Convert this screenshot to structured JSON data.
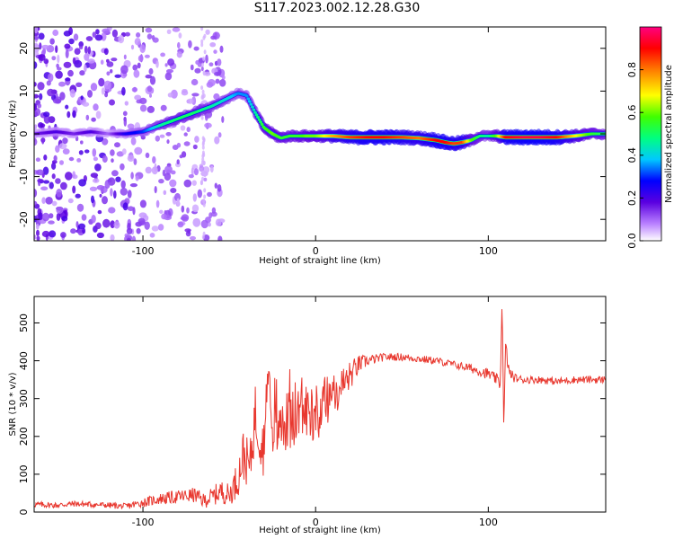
{
  "title": "S117.2023.002.12.28.G30",
  "chart_data": [
    {
      "type": "heatmap",
      "xlabel": "Height of straight line (km)",
      "ylabel": "Frequency (Hz)",
      "xlim": [
        -163,
        168
      ],
      "ylim": [
        -25,
        25
      ],
      "x_ticks": [
        "-100",
        "0",
        "100"
      ],
      "x_tick_values": [
        -100,
        0,
        100
      ],
      "y_ticks": [
        "-20",
        "-10",
        "0",
        "10",
        "20"
      ],
      "y_tick_values": [
        -20,
        -10,
        0,
        10,
        20
      ],
      "colorbar": {
        "label": "Normalized spectral amplitude",
        "range": [
          0,
          1
        ],
        "ticks": [
          "0.0",
          "0.2",
          "0.4",
          "0.6",
          "0.8"
        ],
        "tick_values": [
          0.0,
          0.2,
          0.4,
          0.6,
          0.8
        ]
      },
      "ridge": {
        "x": [
          -163,
          -150,
          -140,
          -130,
          -120,
          -110,
          -100,
          -90,
          -80,
          -70,
          -60,
          -50,
          -45,
          -40,
          -35,
          -30,
          -25,
          -20,
          -15,
          -10,
          -5,
          0,
          10,
          20,
          30,
          40,
          50,
          60,
          70,
          75,
          80,
          85,
          90,
          95,
          100,
          105,
          110,
          120,
          130,
          140,
          150,
          160,
          168
        ],
        "y": [
          0,
          0.5,
          0,
          0.5,
          0,
          0,
          0.5,
          2,
          3.5,
          5,
          6.5,
          8.5,
          9.5,
          9,
          5,
          1.5,
          0,
          -1,
          -0.5,
          -0.5,
          -0.5,
          -0.5,
          -0.5,
          -0.8,
          -0.8,
          -0.8,
          -0.8,
          -1,
          -1.5,
          -2,
          -2.3,
          -2,
          -1.5,
          -0.5,
          -0.5,
          -0.5,
          -0.8,
          -0.8,
          -0.8,
          -0.8,
          -0.5,
          0,
          0
        ],
        "amplitude": [
          0.15,
          0.2,
          0.15,
          0.2,
          0.1,
          0.25,
          0.3,
          0.45,
          0.5,
          0.5,
          0.45,
          0.4,
          0.35,
          0.35,
          0.45,
          0.55,
          0.6,
          0.55,
          0.55,
          0.55,
          0.6,
          0.6,
          0.75,
          0.85,
          0.9,
          0.9,
          0.85,
          0.8,
          0.9,
          0.9,
          0.85,
          0.85,
          0.6,
          0.5,
          0.45,
          0.6,
          0.9,
          0.95,
          0.95,
          0.9,
          0.7,
          0.55,
          0.5
        ]
      }
    },
    {
      "type": "line",
      "xlabel": "Height of straight line (km)",
      "ylabel": "SNR (10 * v/v)",
      "xlim": [
        -163,
        168
      ],
      "ylim": [
        0,
        570
      ],
      "x_ticks": [
        "-100",
        "0",
        "100"
      ],
      "x_tick_values": [
        -100,
        0,
        100
      ],
      "y_ticks": [
        "0",
        "100",
        "200",
        "300",
        "400",
        "500"
      ],
      "y_tick_values": [
        0,
        100,
        200,
        300,
        400,
        500
      ],
      "color": "#e8382f",
      "series": [
        {
          "x": [
            -163,
            -150,
            -140,
            -130,
            -120,
            -110,
            -100,
            -90,
            -80,
            -70,
            -65,
            -60,
            -55,
            -50,
            -45,
            -42,
            -38,
            -35,
            -30,
            -27,
            -25,
            -20,
            -15,
            -10,
            -5,
            0,
            5,
            10,
            15,
            20,
            25,
            30,
            40,
            50,
            60,
            70,
            80,
            90,
            100,
            105,
            107,
            108,
            109,
            110,
            112,
            115,
            120,
            130,
            140,
            150,
            160,
            168
          ],
          "y": [
            20,
            18,
            22,
            20,
            18,
            15,
            25,
            35,
            40,
            45,
            30,
            40,
            55,
            45,
            90,
            150,
            120,
            260,
            170,
            390,
            200,
            230,
            240,
            250,
            270,
            260,
            290,
            310,
            330,
            360,
            390,
            400,
            410,
            410,
            405,
            400,
            390,
            380,
            365,
            350,
            340,
            560,
            220,
            440,
            370,
            355,
            350,
            350,
            345,
            350,
            350,
            350
          ],
          "noise": [
            8,
            8,
            8,
            8,
            8,
            8,
            12,
            15,
            18,
            20,
            20,
            25,
            30,
            30,
            50,
            70,
            60,
            90,
            80,
            60,
            80,
            80,
            80,
            80,
            80,
            80,
            70,
            60,
            55,
            40,
            25,
            15,
            10,
            10,
            10,
            10,
            10,
            12,
            15,
            15,
            20,
            0,
            0,
            20,
            15,
            12,
            10,
            10,
            10,
            10,
            10,
            10
          ]
        }
      ]
    }
  ]
}
